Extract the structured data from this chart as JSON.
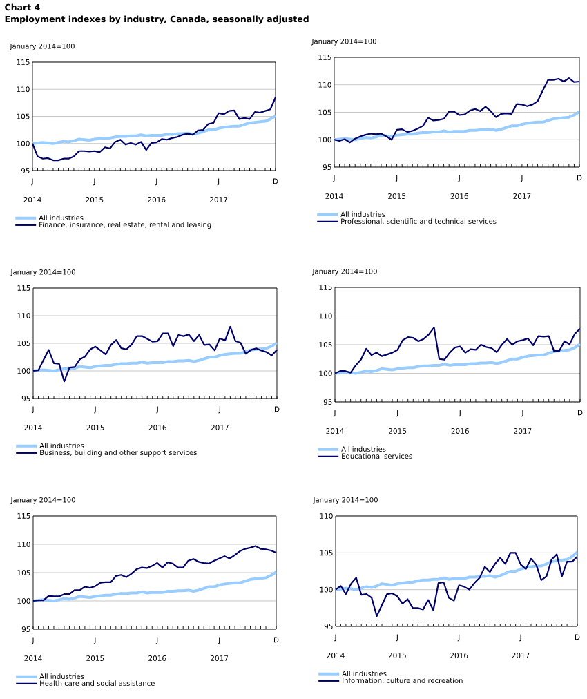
{
  "chart_data": [
    {
      "type": "line",
      "title": "Chart 4",
      "subtitle": "Employment indexes by industry, Canada, seasonally adjusted",
      "ylabel": "January 2014=100",
      "categories": [
        "J",
        null,
        null,
        null,
        null,
        null,
        null,
        null,
        null,
        null,
        null,
        null,
        "J",
        null,
        null,
        null,
        null,
        null,
        null,
        null,
        null,
        null,
        null,
        null,
        "J",
        null,
        null,
        null,
        null,
        null,
        null,
        null,
        null,
        null,
        null,
        null,
        "J",
        null,
        null,
        null,
        null,
        null,
        null,
        null,
        null,
        null,
        null,
        "D"
      ],
      "ylim": [
        95,
        115
      ],
      "yticks": [
        95,
        100,
        105,
        110,
        115
      ],
      "grid": "y",
      "legend": "bottom",
      "annotations": [
        "2014",
        "2015",
        "2016",
        "2017"
      ],
      "series": [
        {
          "name": "All industries",
          "color": "#99ccff",
          "values": [
            100,
            100.1,
            100.2,
            100.1,
            100.0,
            100.2,
            100.4,
            100.3,
            100.5,
            100.8,
            100.7,
            100.6,
            100.8,
            100.9,
            101.0,
            101.0,
            101.2,
            101.3,
            101.3,
            101.4,
            101.4,
            101.6,
            101.4,
            101.5,
            101.5,
            101.5,
            101.7,
            101.7,
            101.8,
            101.8,
            101.9,
            101.7,
            101.9,
            102.2,
            102.5,
            102.5,
            102.8,
            103.0,
            103.1,
            103.2,
            103.2,
            103.5,
            103.8,
            103.9,
            104.0,
            104.1,
            104.5,
            105.1
          ]
        },
        {
          "name": "Finance, insurance, real estate, rental and leasing",
          "color": "#000066",
          "values": [
            100,
            97.6,
            97.2,
            97.3,
            96.9,
            96.9,
            97.2,
            97.2,
            97.6,
            98.6,
            98.6,
            98.5,
            98.6,
            98.4,
            99.3,
            99.1,
            100.3,
            100.7,
            99.8,
            100.1,
            99.8,
            100.3,
            98.8,
            100.1,
            100.2,
            100.8,
            100.7,
            101.0,
            101.2,
            101.6,
            101.8,
            101.6,
            102.4,
            102.5,
            103.6,
            103.8,
            105.6,
            105.4,
            106.0,
            106.1,
            104.5,
            104.7,
            104.5,
            105.8,
            105.7,
            106.0,
            106.3,
            108.5
          ]
        }
      ]
    },
    {
      "type": "line",
      "ylabel": "January 2014=100",
      "categories": [
        "J",
        null,
        null,
        null,
        null,
        null,
        null,
        null,
        null,
        null,
        null,
        null,
        "J",
        null,
        null,
        null,
        null,
        null,
        null,
        null,
        null,
        null,
        null,
        null,
        "J",
        null,
        null,
        null,
        null,
        null,
        null,
        null,
        null,
        null,
        null,
        null,
        "J",
        null,
        null,
        null,
        null,
        null,
        null,
        null,
        null,
        null,
        null,
        "D"
      ],
      "ylim": [
        95,
        115
      ],
      "yticks": [
        95,
        100,
        105,
        110,
        115
      ],
      "grid": "y",
      "legend": "bottom",
      "annotations": [
        "2014",
        "2015",
        "2016",
        "2017"
      ],
      "series": [
        {
          "name": "All industries",
          "color": "#99ccff",
          "values": [
            100,
            100.1,
            100.2,
            100.1,
            100.0,
            100.2,
            100.4,
            100.3,
            100.5,
            100.8,
            100.7,
            100.6,
            100.8,
            100.9,
            101.0,
            101.0,
            101.2,
            101.3,
            101.3,
            101.4,
            101.4,
            101.6,
            101.4,
            101.5,
            101.5,
            101.5,
            101.7,
            101.7,
            101.8,
            101.8,
            101.9,
            101.7,
            101.9,
            102.2,
            102.5,
            102.5,
            102.8,
            103.0,
            103.1,
            103.2,
            103.2,
            103.5,
            103.8,
            103.9,
            104.0,
            104.1,
            104.5,
            105.1
          ]
        },
        {
          "name": "Professional, scientific and technical services",
          "color": "#000066",
          "values": [
            100.0,
            99.8,
            100.1,
            99.5,
            100.2,
            100.6,
            100.9,
            101.1,
            101.0,
            101.1,
            100.6,
            100.0,
            101.8,
            101.9,
            101.4,
            101.6,
            102.0,
            102.5,
            104.0,
            103.5,
            103.6,
            103.8,
            105.1,
            105.1,
            104.5,
            104.6,
            105.3,
            105.6,
            105.2,
            106.0,
            105.2,
            104.1,
            104.7,
            104.8,
            104.7,
            106.5,
            106.4,
            106.1,
            106.4,
            107.0,
            109.0,
            110.9,
            110.9,
            111.1,
            110.6,
            111.2,
            110.5,
            110.6
          ]
        }
      ]
    },
    {
      "type": "line",
      "ylabel": "January 2014=100",
      "categories": [
        "J",
        null,
        null,
        null,
        null,
        null,
        null,
        null,
        null,
        null,
        null,
        null,
        "J",
        null,
        null,
        null,
        null,
        null,
        null,
        null,
        null,
        null,
        null,
        null,
        "J",
        null,
        null,
        null,
        null,
        null,
        null,
        null,
        null,
        null,
        null,
        null,
        "J",
        null,
        null,
        null,
        null,
        null,
        null,
        null,
        null,
        null,
        null,
        "D"
      ],
      "ylim": [
        95,
        115
      ],
      "yticks": [
        95,
        100,
        105,
        110,
        115
      ],
      "grid": "y",
      "legend": "bottom",
      "annotations": [
        "2014",
        "2015",
        "2016",
        "2017"
      ],
      "series": [
        {
          "name": "All industries",
          "color": "#99ccff",
          "values": [
            100,
            100.1,
            100.2,
            100.1,
            100.0,
            100.2,
            100.4,
            100.3,
            100.5,
            100.8,
            100.7,
            100.6,
            100.8,
            100.9,
            101.0,
            101.0,
            101.2,
            101.3,
            101.3,
            101.4,
            101.4,
            101.6,
            101.4,
            101.5,
            101.5,
            101.5,
            101.7,
            101.7,
            101.8,
            101.8,
            101.9,
            101.7,
            101.9,
            102.2,
            102.5,
            102.5,
            102.8,
            103.0,
            103.1,
            103.2,
            103.2,
            103.5,
            103.8,
            103.9,
            104.0,
            104.1,
            104.5,
            105.1
          ]
        },
        {
          "name": "Business, building and other support services",
          "color": "#000066",
          "values": [
            100.0,
            100.1,
            102.0,
            103.8,
            101.4,
            101.3,
            98.1,
            100.6,
            100.7,
            102.1,
            102.6,
            103.9,
            104.4,
            103.7,
            103.0,
            104.7,
            105.6,
            104.1,
            103.9,
            104.8,
            106.3,
            106.3,
            105.8,
            105.3,
            105.4,
            106.8,
            106.8,
            104.5,
            106.5,
            106.3,
            106.6,
            105.4,
            106.5,
            104.7,
            104.8,
            103.7,
            105.9,
            105.5,
            108.0,
            105.4,
            105.1,
            103.1,
            103.8,
            104.1,
            103.7,
            103.4,
            102.8,
            103.8
          ]
        }
      ]
    },
    {
      "type": "line",
      "ylabel": "January 2014=100",
      "categories": [
        "J",
        null,
        null,
        null,
        null,
        null,
        null,
        null,
        null,
        null,
        null,
        null,
        "J",
        null,
        null,
        null,
        null,
        null,
        null,
        null,
        null,
        null,
        null,
        null,
        "J",
        null,
        null,
        null,
        null,
        null,
        null,
        null,
        null,
        null,
        null,
        null,
        "J",
        null,
        null,
        null,
        null,
        null,
        null,
        null,
        null,
        null,
        null,
        "D"
      ],
      "ylim": [
        95,
        115
      ],
      "yticks": [
        95,
        100,
        105,
        110,
        115
      ],
      "grid": "y",
      "legend": "bottom",
      "annotations": [
        "2014",
        "2015",
        "2016",
        "2017"
      ],
      "series": [
        {
          "name": "All industries",
          "color": "#99ccff",
          "values": [
            100,
            100.1,
            100.2,
            100.1,
            100.0,
            100.2,
            100.4,
            100.3,
            100.5,
            100.8,
            100.7,
            100.6,
            100.8,
            100.9,
            101.0,
            101.0,
            101.2,
            101.3,
            101.3,
            101.4,
            101.4,
            101.6,
            101.4,
            101.5,
            101.5,
            101.5,
            101.7,
            101.7,
            101.8,
            101.8,
            101.9,
            101.7,
            101.9,
            102.2,
            102.5,
            102.5,
            102.8,
            103.0,
            103.1,
            103.2,
            103.2,
            103.5,
            103.8,
            103.9,
            104.0,
            104.1,
            104.5,
            105.1
          ]
        },
        {
          "name": "Educational services",
          "color": "#000066",
          "values": [
            100.0,
            100.4,
            100.4,
            100.1,
            101.4,
            102.4,
            104.3,
            103.2,
            103.6,
            103.0,
            103.3,
            103.6,
            104.1,
            105.8,
            106.3,
            106.2,
            105.6,
            106.0,
            106.8,
            108.0,
            102.5,
            102.4,
            103.6,
            104.5,
            104.7,
            103.6,
            104.2,
            104.1,
            105.0,
            104.6,
            104.4,
            103.7,
            105.0,
            106.0,
            105.0,
            105.6,
            105.8,
            106.1,
            104.9,
            106.5,
            106.4,
            106.5,
            103.9,
            103.9,
            105.6,
            105.1,
            106.9,
            107.8
          ]
        }
      ]
    },
    {
      "type": "line",
      "ylabel": "January 2014=100",
      "categories": [
        "J",
        null,
        null,
        null,
        null,
        null,
        null,
        null,
        null,
        null,
        null,
        null,
        "J",
        null,
        null,
        null,
        null,
        null,
        null,
        null,
        null,
        null,
        null,
        null,
        "J",
        null,
        null,
        null,
        null,
        null,
        null,
        null,
        null,
        null,
        null,
        null,
        "J",
        null,
        null,
        null,
        null,
        null,
        null,
        null,
        null,
        null,
        null,
        "D"
      ],
      "ylim": [
        95,
        115
      ],
      "yticks": [
        95,
        100,
        105,
        110,
        115
      ],
      "grid": "y",
      "legend": "bottom",
      "annotations": [
        "2014",
        "2015",
        "2016",
        "2017"
      ],
      "series": [
        {
          "name": "All industries",
          "color": "#99ccff",
          "values": [
            100,
            100.1,
            100.2,
            100.1,
            100.0,
            100.2,
            100.4,
            100.3,
            100.5,
            100.8,
            100.7,
            100.6,
            100.8,
            100.9,
            101.0,
            101.0,
            101.2,
            101.3,
            101.3,
            101.4,
            101.4,
            101.6,
            101.4,
            101.5,
            101.5,
            101.5,
            101.7,
            101.7,
            101.8,
            101.8,
            101.9,
            101.7,
            101.9,
            102.2,
            102.5,
            102.5,
            102.8,
            103.0,
            103.1,
            103.2,
            103.2,
            103.5,
            103.8,
            103.9,
            104.0,
            104.1,
            104.5,
            105.1
          ]
        },
        {
          "name": "Health care and social assistance",
          "color": "#000066",
          "values": [
            100.0,
            100.1,
            100.1,
            100.9,
            100.8,
            100.8,
            101.2,
            101.2,
            101.9,
            101.9,
            102.5,
            102.3,
            102.6,
            103.2,
            103.3,
            103.3,
            104.4,
            104.6,
            104.2,
            104.8,
            105.6,
            105.9,
            105.8,
            106.2,
            106.7,
            105.9,
            106.8,
            106.6,
            105.9,
            105.9,
            107.1,
            107.4,
            106.9,
            106.7,
            106.6,
            107.1,
            107.5,
            107.9,
            107.5,
            108.1,
            108.8,
            109.2,
            109.4,
            109.7,
            109.2,
            109.1,
            108.9,
            108.5
          ]
        }
      ]
    },
    {
      "type": "line",
      "ylabel": "January 2014=100",
      "categories": [
        "J",
        null,
        null,
        null,
        null,
        null,
        null,
        null,
        null,
        null,
        null,
        null,
        "J",
        null,
        null,
        null,
        null,
        null,
        null,
        null,
        null,
        null,
        null,
        null,
        "J",
        null,
        null,
        null,
        null,
        null,
        null,
        null,
        null,
        null,
        null,
        null,
        "J",
        null,
        null,
        null,
        null,
        null,
        null,
        null,
        null,
        null,
        null,
        "D"
      ],
      "ylim": [
        95,
        110
      ],
      "yticks": [
        95,
        100,
        105,
        110
      ],
      "grid": "y",
      "legend": "bottom",
      "annotations": [
        "2014",
        "2015",
        "2016",
        "2017"
      ],
      "series": [
        {
          "name": "All industries",
          "color": "#99ccff",
          "values": [
            100,
            100.1,
            100.2,
            100.1,
            100.0,
            100.2,
            100.4,
            100.3,
            100.5,
            100.8,
            100.7,
            100.6,
            100.8,
            100.9,
            101.0,
            101.0,
            101.2,
            101.3,
            101.3,
            101.4,
            101.4,
            101.6,
            101.4,
            101.5,
            101.5,
            101.5,
            101.7,
            101.7,
            101.8,
            101.8,
            101.9,
            101.7,
            101.9,
            102.2,
            102.5,
            102.5,
            102.8,
            103.0,
            103.1,
            103.2,
            103.2,
            103.5,
            103.8,
            103.9,
            104.0,
            104.1,
            104.5,
            105.1
          ]
        },
        {
          "name": "Information, culture and recreation",
          "color": "#000066",
          "values": [
            100.0,
            100.5,
            99.4,
            100.8,
            101.6,
            99.3,
            99.4,
            98.9,
            96.4,
            97.9,
            99.4,
            99.5,
            99.1,
            98.1,
            98.7,
            97.5,
            97.5,
            97.3,
            98.6,
            97.2,
            100.9,
            101.0,
            98.9,
            98.5,
            100.6,
            100.4,
            100.0,
            100.9,
            101.6,
            103.1,
            102.4,
            103.5,
            104.3,
            103.5,
            105.0,
            105.0,
            103.4,
            102.8,
            104.2,
            103.4,
            101.3,
            101.8,
            104.1,
            104.8,
            101.8,
            103.8,
            103.8,
            104.5
          ]
        }
      ]
    }
  ]
}
